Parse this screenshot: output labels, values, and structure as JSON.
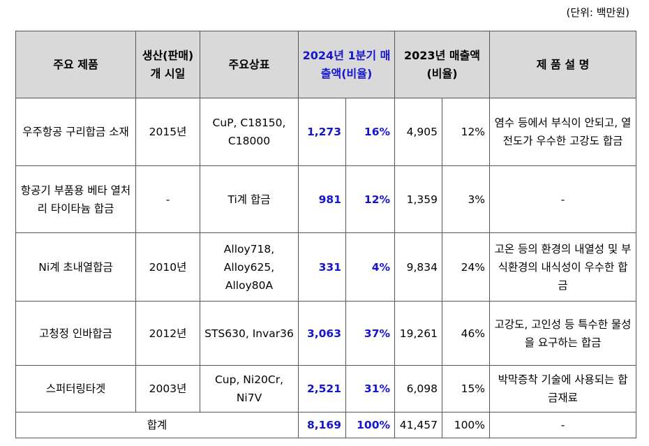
{
  "unit_label": "(단위: 백만원)",
  "headers": {
    "product": "주요 제품",
    "start": "생산(판매) 개 시일",
    "brand": "주요상표",
    "q1_2024": "2024년 1분기 매출액(비율)",
    "y2023": "2023년 매출액(비율)",
    "desc": "제 품 설 명"
  },
  "rows": [
    {
      "product": "우주항공 구리합금 소재",
      "start": "2015년",
      "brand": "CuP, C18150, C18000",
      "q1_amount": "1,273",
      "q1_ratio": "16%",
      "y_amount": "4,905",
      "y_ratio": "12%",
      "desc": "염수 등에서 부식이 안되고, 열전도가 우수한 고강도 합금"
    },
    {
      "product": "항공기 부품용 베타 열처리 타이타늄 합금",
      "start": "-",
      "brand": "Ti계 합금",
      "q1_amount": "981",
      "q1_ratio": "12%",
      "y_amount": "1,359",
      "y_ratio": "3%",
      "desc": "-"
    },
    {
      "product": "Ni계 초내열합금",
      "start": "2010년",
      "brand": "Alloy718, Alloy625, Alloy80A",
      "q1_amount": "331",
      "q1_ratio": "4%",
      "y_amount": "9,834",
      "y_ratio": "24%",
      "desc": "고온 등의 환경의 내열성 및 부식환경의 내식성이 우수한 합금"
    },
    {
      "product": "고청정 인바합금",
      "start": "2012년",
      "brand": "STS630, Invar36",
      "q1_amount": "3,063",
      "q1_ratio": "37%",
      "y_amount": "19,261",
      "y_ratio": "46%",
      "desc": "고강도, 고인성 등 특수한 물성을 요구하는 합금"
    },
    {
      "product": "스퍼터링타겟",
      "start": "2003년",
      "brand": "Cup, Ni20Cr, Ni7V",
      "q1_amount": "2,521",
      "q1_ratio": "31%",
      "y_amount": "6,098",
      "y_ratio": "15%",
      "desc": "박막증착 기술에 사용되는 합금재료"
    }
  ],
  "total": {
    "label": "합계",
    "q1_amount": "8,169",
    "q1_ratio": "100%",
    "y_amount": "41,457",
    "y_ratio": "100%",
    "desc": "-"
  },
  "colors": {
    "header_bg": "#d9d9d9",
    "accent_blue": "#1515d0"
  }
}
